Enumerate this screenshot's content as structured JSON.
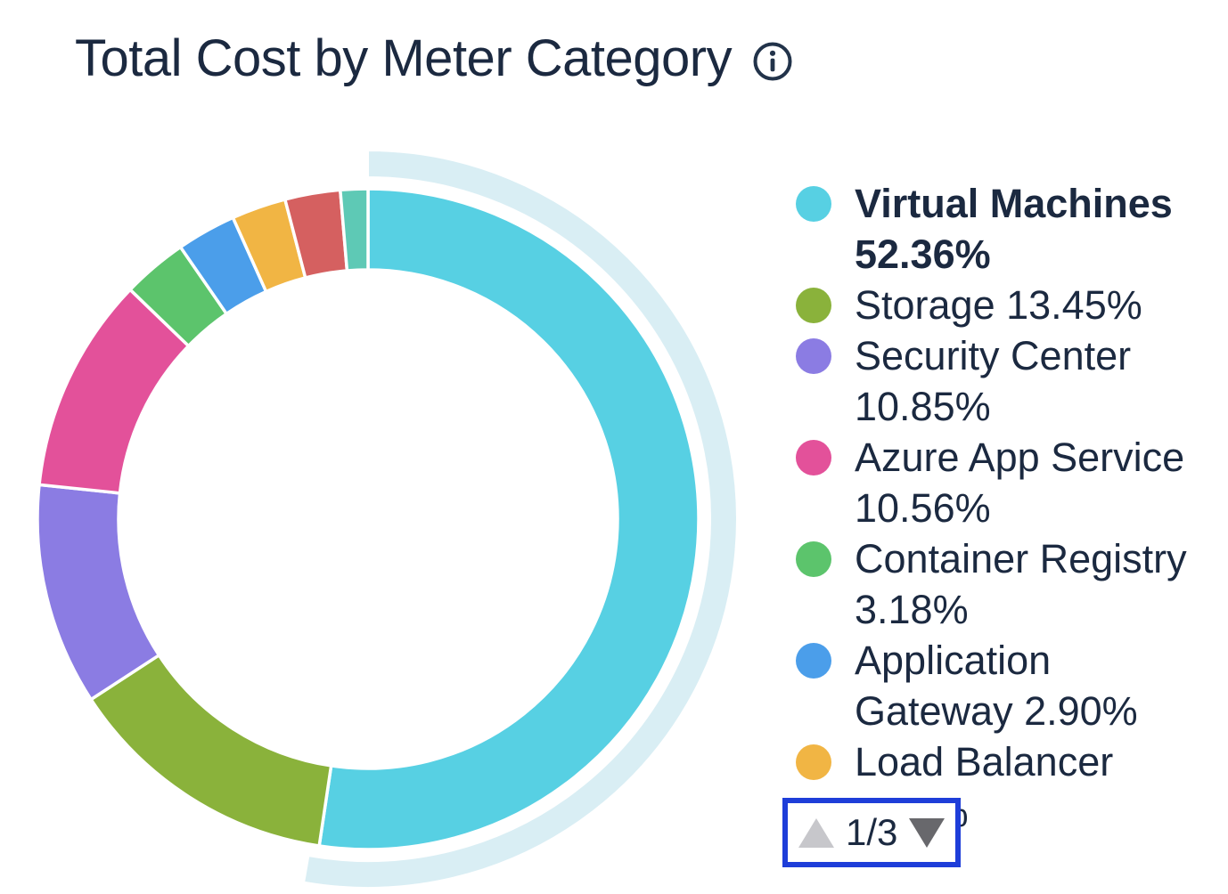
{
  "header": {
    "title": "Total Cost by Meter Category"
  },
  "chart_data": {
    "type": "pie",
    "subtype": "donut",
    "title": "Total Cost by Meter Category",
    "legend_position": "right",
    "start_angle_deg": 0,
    "direction": "clockwise",
    "highlighted_segment": "Virtual Machines",
    "highlight_halo_color": "#D9EEF4",
    "segments": [
      {
        "label": "Virtual Machines",
        "value": 52.36,
        "display": "52.36%",
        "color": "#57D0E3",
        "highlighted": true,
        "visible_in_legend": true
      },
      {
        "label": "Storage",
        "value": 13.45,
        "display": "13.45%",
        "color": "#8AB23B",
        "highlighted": false,
        "visible_in_legend": true
      },
      {
        "label": "Security Center",
        "value": 10.85,
        "display": "10.85%",
        "color": "#8B7CE3",
        "highlighted": false,
        "visible_in_legend": true
      },
      {
        "label": "Azure App Service",
        "value": 10.56,
        "display": "10.56%",
        "color": "#E3519A",
        "highlighted": false,
        "visible_in_legend": true
      },
      {
        "label": "Container Registry",
        "value": 3.18,
        "display": "3.18%",
        "color": "#5CC46C",
        "highlighted": false,
        "visible_in_legend": true
      },
      {
        "label": "Application Gateway",
        "value": 2.9,
        "display": "2.90%",
        "color": "#4B9EEA",
        "highlighted": false,
        "visible_in_legend": true
      },
      {
        "label": "Load Balancer",
        "value": 2.66,
        "display": "2.66%",
        "color": "#F1B544",
        "highlighted": false,
        "visible_in_legend": true
      },
      {
        "label": "",
        "value": 2.7,
        "display": "",
        "color": "#D56060",
        "highlighted": false,
        "visible_in_legend": false
      },
      {
        "label": "",
        "value": 1.34,
        "display": "",
        "color": "#5EC9B5",
        "highlighted": false,
        "visible_in_legend": false
      }
    ]
  },
  "legend": {
    "items": [
      {
        "lines": [
          "Virtual Machines",
          "52.36%"
        ],
        "color": "#57D0E3",
        "bold": true
      },
      {
        "lines": [
          "Storage 13.45%"
        ],
        "color": "#8AB23B",
        "bold": false
      },
      {
        "lines": [
          "Security Center",
          "10.85%"
        ],
        "color": "#8B7CE3",
        "bold": false
      },
      {
        "lines": [
          "Azure App Service",
          "10.56%"
        ],
        "color": "#E3519A",
        "bold": false
      },
      {
        "lines": [
          "Container Registry",
          "3.18%"
        ],
        "color": "#5CC46C",
        "bold": false
      },
      {
        "lines": [
          "Application",
          "Gateway 2.90%"
        ],
        "color": "#4B9EEA",
        "bold": false
      },
      {
        "lines": [
          "Load Balancer",
          "2.66%"
        ],
        "color": "#F1B544",
        "bold": false
      }
    ]
  },
  "pager": {
    "current": "1/3",
    "up_enabled": false,
    "down_enabled": true,
    "up_arrow_color": "#C7C7CB",
    "down_arrow_color": "#68686C",
    "highlight_border_color": "#1E3ED9"
  }
}
